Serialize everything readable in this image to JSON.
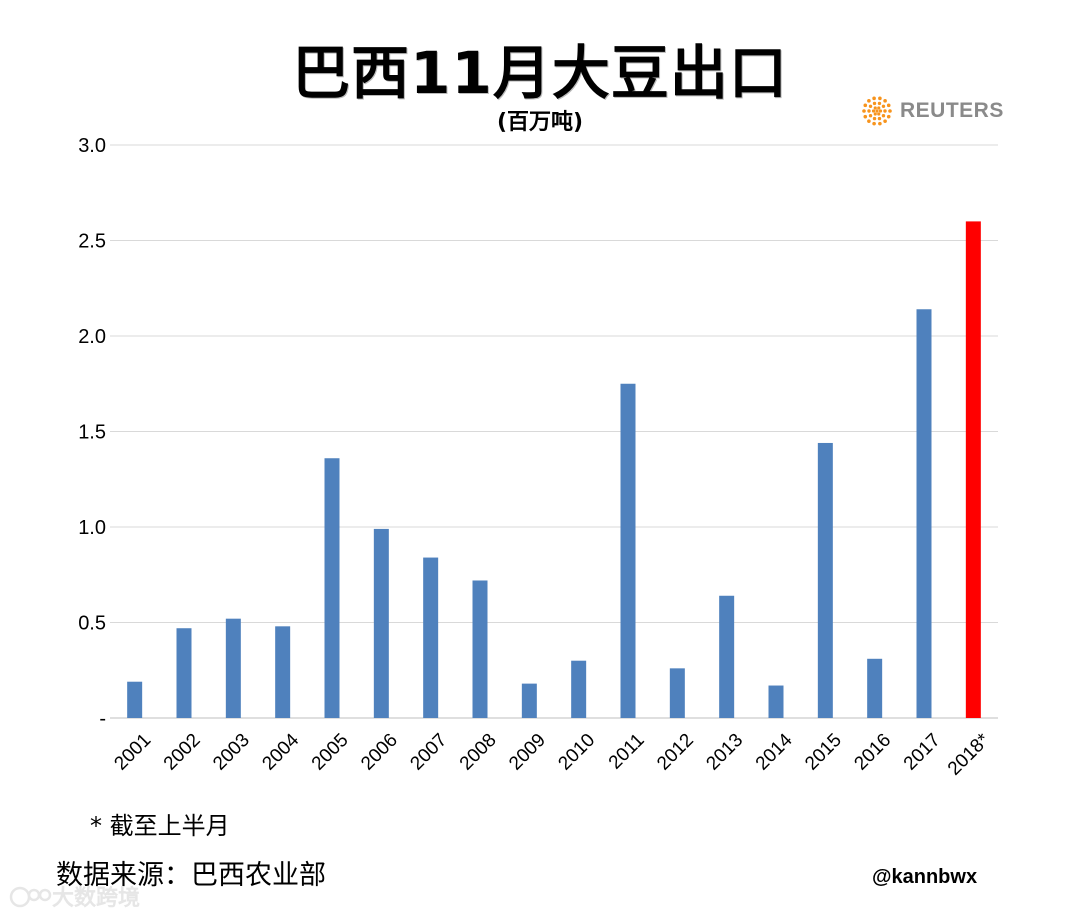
{
  "header": {
    "title": "巴西11月大豆出口",
    "subtitle": "(百万吨)",
    "logo_text": "REUTERS"
  },
  "footer": {
    "footnote": "* 截至上半月",
    "source": "数据来源：巴西农业部",
    "handle": "@kannbwx",
    "watermark": "大数跨境"
  },
  "colors": {
    "bar": "#4f81bd",
    "highlight_bar": "#ff0000",
    "gridline": "#d9d9d9",
    "logo": "#f7941d"
  },
  "chart_data": {
    "type": "bar",
    "title": "巴西11月大豆出口",
    "subtitle": "(百万吨)",
    "xlabel": "",
    "ylabel": "",
    "ylim": [
      0,
      3.0
    ],
    "yticks": [
      0,
      0.5,
      1.0,
      1.5,
      2.0,
      2.5,
      3.0
    ],
    "ytick_labels": [
      "-",
      "0.5",
      "1.0",
      "1.5",
      "2.0",
      "2.5",
      "3.0"
    ],
    "grid": true,
    "categories": [
      "2001",
      "2002",
      "2003",
      "2004",
      "2005",
      "2006",
      "2007",
      "2008",
      "2009",
      "2010",
      "2011",
      "2012",
      "2013",
      "2014",
      "2015",
      "2016",
      "2017",
      "2018*"
    ],
    "values": [
      0.19,
      0.47,
      0.52,
      0.48,
      1.36,
      0.99,
      0.84,
      0.72,
      0.18,
      0.3,
      1.75,
      0.26,
      0.64,
      0.17,
      1.44,
      0.31,
      2.14,
      2.6
    ],
    "highlight_index": 17
  }
}
